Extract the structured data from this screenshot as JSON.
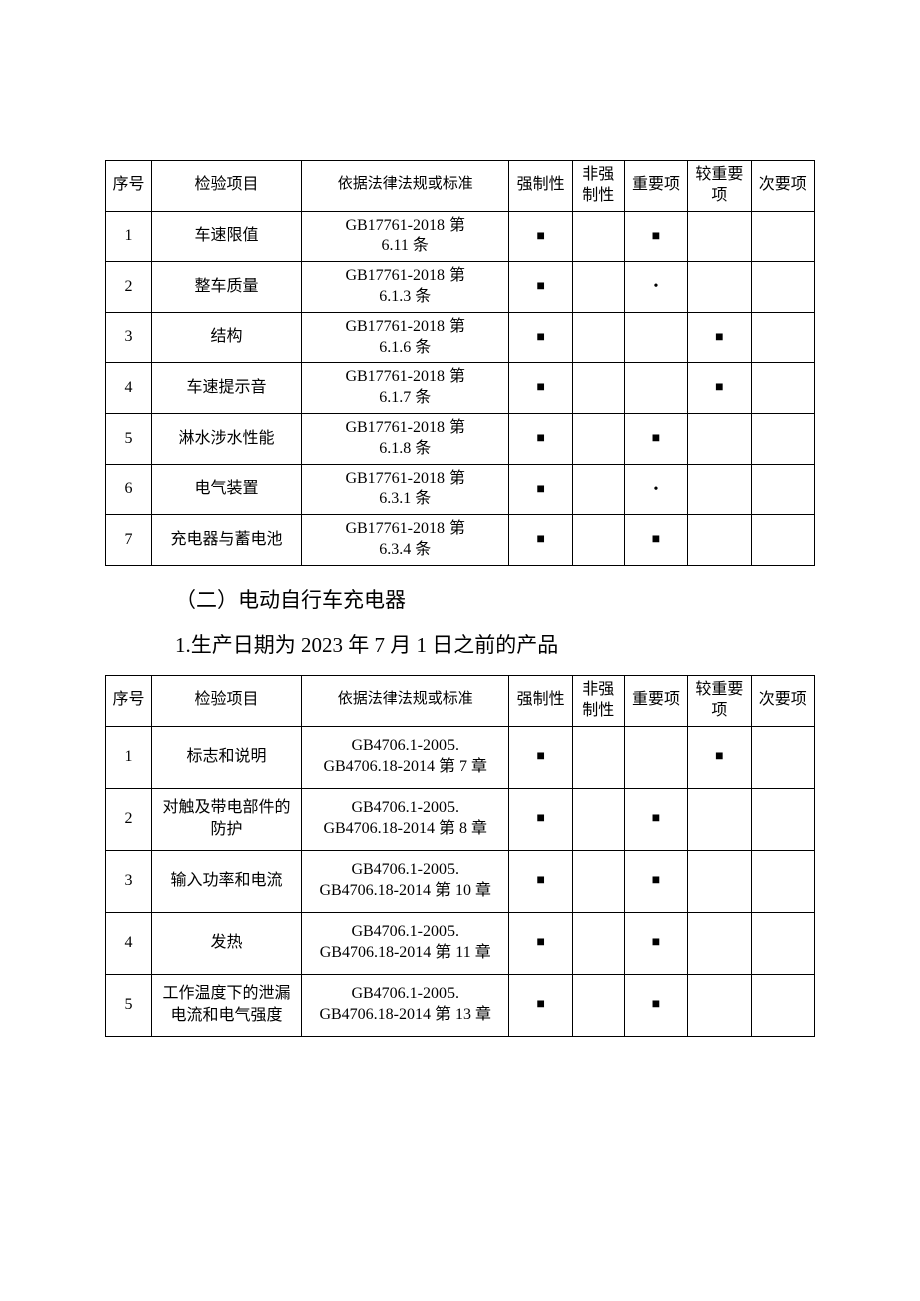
{
  "table1": {
    "headers": {
      "seq": "序号",
      "item": "检验项目",
      "basis": "依据法律法规或标准",
      "mandatory": "强制性",
      "nonmandatory": "非强\n制性",
      "important": "重要项",
      "moreimportant": "较重要\n项",
      "secondary": "次要项"
    },
    "rows": [
      {
        "seq": "1",
        "item": "车速限值",
        "basis": "GB17761-2018 第\n6.11 条",
        "mandatory": "■",
        "nonmandatory": "",
        "important": "■",
        "moreimportant": "",
        "secondary": ""
      },
      {
        "seq": "2",
        "item": "整车质量",
        "basis": "GB17761-2018 第\n6.1.3 条",
        "mandatory": "■",
        "nonmandatory": "",
        "important": "•",
        "moreimportant": "",
        "secondary": ""
      },
      {
        "seq": "3",
        "item": "结构",
        "basis": "GB17761-2018 第\n6.1.6 条",
        "mandatory": "■",
        "nonmandatory": "",
        "important": "",
        "moreimportant": "■",
        "secondary": ""
      },
      {
        "seq": "4",
        "item": "车速提示音",
        "basis": "GB17761-2018 第\n6.1.7 条",
        "mandatory": "■",
        "nonmandatory": "",
        "important": "",
        "moreimportant": "■",
        "secondary": ""
      },
      {
        "seq": "5",
        "item": "淋水涉水性能",
        "basis": "GB17761-2018 第\n6.1.8 条",
        "mandatory": "■",
        "nonmandatory": "",
        "important": "■",
        "moreimportant": "",
        "secondary": ""
      },
      {
        "seq": "6",
        "item": "电气装置",
        "basis": "GB17761-2018 第\n6.3.1 条",
        "mandatory": "■",
        "nonmandatory": "",
        "important": "•",
        "moreimportant": "",
        "secondary": ""
      },
      {
        "seq": "7",
        "item": "充电器与蓄电池",
        "basis": "GB17761-2018 第\n6.3.4 条",
        "mandatory": "■",
        "nonmandatory": "",
        "important": "■",
        "moreimportant": "",
        "secondary": ""
      }
    ]
  },
  "section2_title": "（二）电动自行车充电器",
  "subsection_title": "1.生产日期为 2023 年 7 月 1 日之前的产品",
  "table2": {
    "headers": {
      "seq": "序号",
      "item": "检验项目",
      "basis": "依据法律法规或标准",
      "mandatory": "强制性",
      "nonmandatory": "非强\n制性",
      "important": "重要项",
      "moreimportant": "较重要\n项",
      "secondary": "次要项"
    },
    "rows": [
      {
        "seq": "1",
        "item": "标志和说明",
        "basis": "GB4706.1-2005.\nGB4706.18-2014 第 7 章",
        "mandatory": "■",
        "nonmandatory": "",
        "important": "",
        "moreimportant": "■",
        "secondary": ""
      },
      {
        "seq": "2",
        "item": "对触及带电部件的\n防护",
        "basis": "GB4706.1-2005.\nGB4706.18-2014 第 8 章",
        "mandatory": "■",
        "nonmandatory": "",
        "important": "■",
        "moreimportant": "",
        "secondary": ""
      },
      {
        "seq": "3",
        "item": "输入功率和电流",
        "basis": "GB4706.1-2005.\nGB4706.18-2014 第 10 章",
        "mandatory": "■",
        "nonmandatory": "",
        "important": "■",
        "moreimportant": "",
        "secondary": ""
      },
      {
        "seq": "4",
        "item": "发热",
        "basis": "GB4706.1-2005.\nGB4706.18-2014 第 11 章",
        "mandatory": "■",
        "nonmandatory": "",
        "important": "■",
        "moreimportant": "",
        "secondary": ""
      },
      {
        "seq": "5",
        "item": "工作温度下的泄漏\n电流和电气强度",
        "basis": "GB4706.1-2005.\nGB4706.18-2014 第 13 章",
        "mandatory": "■",
        "nonmandatory": "",
        "important": "■",
        "moreimportant": "",
        "secondary": ""
      }
    ]
  },
  "marks": {
    "square": "■",
    "dot": "•"
  }
}
